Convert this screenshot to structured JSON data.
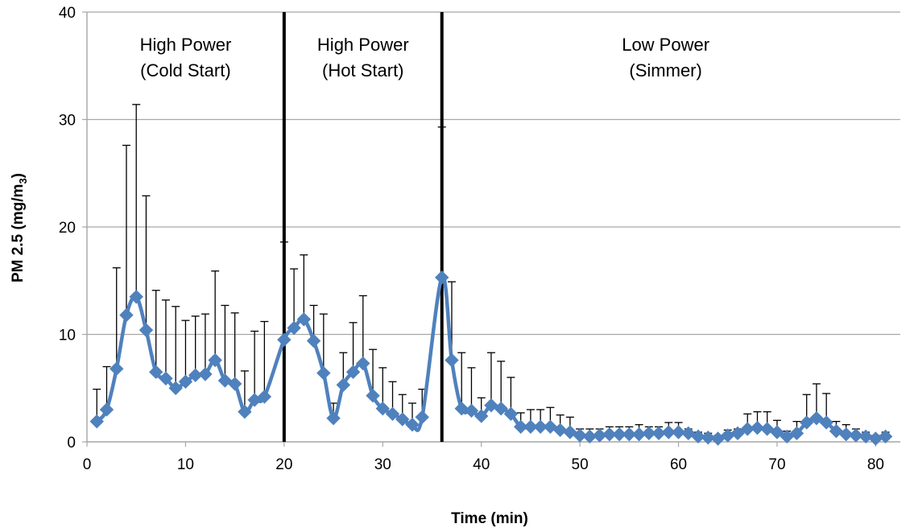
{
  "chart_data": {
    "type": "line",
    "xlabel": "Time (min)",
    "ylabel": {
      "main": "PM 2.5 (mg/m",
      "sub": "3",
      "close": ")"
    },
    "xlim": [
      0,
      82.5
    ],
    "ylim": [
      0,
      40
    ],
    "xticks": [
      0,
      10,
      20,
      30,
      40,
      50,
      60,
      70,
      80
    ],
    "yticks": [
      0,
      10,
      20,
      30,
      40
    ],
    "grid": {
      "horizontal": true,
      "vertical": false
    },
    "legend": "none",
    "colors": {
      "series": "#4F81BD",
      "grid": "#A6A6A6",
      "errorbar": "#000000",
      "divider": "#000000"
    },
    "marker": "diamond",
    "dividers": [
      20,
      36
    ],
    "annotations": [
      {
        "lines": [
          "High Power",
          "(Cold Start)"
        ],
        "x": 10
      },
      {
        "lines": [
          "High Power",
          "(Hot Start)"
        ],
        "x": 28
      },
      {
        "lines": [
          "Low Power",
          "(Simmer)"
        ],
        "x": 58.7
      }
    ],
    "series": [
      {
        "x": [
          1,
          2,
          3,
          4,
          5,
          6,
          7,
          8,
          9,
          10,
          11,
          12,
          13,
          14,
          15,
          16,
          17,
          18,
          20,
          21,
          22,
          23,
          24,
          25,
          26,
          27,
          28,
          29,
          30,
          31,
          32,
          33,
          34,
          36,
          37,
          38,
          39,
          40,
          41,
          42,
          43,
          44,
          45,
          46,
          47,
          48,
          49,
          50,
          51,
          52,
          53,
          54,
          55,
          56,
          57,
          58,
          59,
          60,
          61,
          62,
          63,
          64,
          65,
          66,
          67,
          68,
          69,
          70,
          71,
          72,
          73,
          74,
          75,
          76,
          77,
          78,
          79,
          80,
          81
        ],
        "y": [
          1.9,
          3.0,
          6.8,
          11.8,
          13.5,
          10.4,
          6.5,
          5.9,
          5.0,
          5.6,
          6.2,
          6.3,
          7.6,
          5.7,
          5.4,
          2.8,
          3.9,
          4.2,
          9.5,
          10.6,
          11.4,
          9.4,
          6.4,
          2.2,
          5.3,
          6.5,
          7.3,
          4.3,
          3.1,
          2.6,
          2.1,
          1.6,
          2.3,
          15.3,
          7.6,
          3.1,
          2.9,
          2.4,
          3.4,
          3.1,
          2.6,
          1.4,
          1.4,
          1.4,
          1.4,
          1.1,
          0.9,
          0.6,
          0.5,
          0.6,
          0.7,
          0.7,
          0.7,
          0.7,
          0.8,
          0.8,
          0.9,
          0.9,
          0.8,
          0.5,
          0.4,
          0.3,
          0.6,
          0.8,
          1.2,
          1.3,
          1.2,
          0.9,
          0.5,
          0.8,
          1.8,
          2.2,
          1.8,
          1.0,
          0.7,
          0.6,
          0.5,
          0.3,
          0.5
        ],
        "error_upper": [
          4.9,
          7.0,
          16.2,
          27.6,
          31.4,
          22.9,
          14.1,
          13.2,
          12.6,
          11.3,
          11.7,
          11.9,
          15.9,
          12.7,
          12.0,
          6.6,
          10.3,
          11.2,
          18.6,
          16.1,
          17.4,
          12.7,
          11.9,
          3.6,
          8.3,
          11.1,
          13.6,
          8.6,
          6.9,
          5.6,
          4.4,
          3.6,
          4.9,
          29.3,
          14.9,
          8.3,
          6.9,
          4.1,
          8.3,
          7.5,
          6.0,
          2.7,
          3.0,
          3.0,
          3.2,
          2.5,
          2.3,
          1.2,
          1.2,
          1.2,
          1.4,
          1.4,
          1.4,
          1.6,
          1.4,
          1.4,
          1.8,
          1.8,
          1.2,
          0.9,
          0.8,
          0.6,
          1.1,
          1.2,
          2.6,
          2.8,
          2.8,
          2.0,
          1.0,
          1.9,
          4.4,
          5.4,
          4.5,
          1.9,
          1.6,
          1.2,
          0.9,
          0.6,
          0.9
        ]
      }
    ]
  }
}
